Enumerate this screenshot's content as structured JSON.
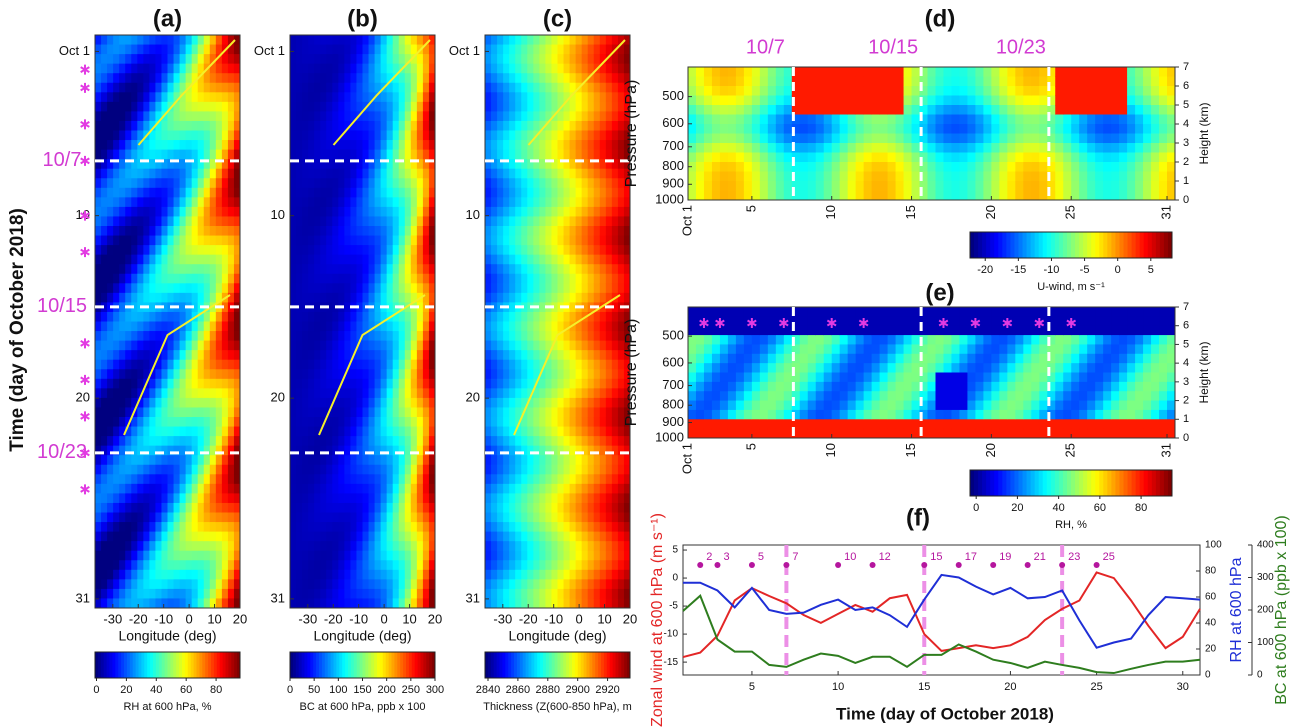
{
  "chart_data": [
    {
      "type": "heatmap",
      "title": "(a)",
      "ylabel": "Time (day of October 2018)",
      "xlabel": "Longitude (deg)",
      "xlim": [
        -37,
        20
      ],
      "xticks": [
        -30,
        -20,
        -10,
        0,
        10,
        20
      ],
      "ylim": [
        31.5,
        0.1
      ],
      "yticks": [
        {
          "value": 1,
          "label": "Oct 1"
        },
        10,
        20,
        31
      ],
      "dates": [
        {
          "value": 7,
          "label": "10/7"
        },
        {
          "value": 15,
          "label": "10/15"
        },
        {
          "value": 23,
          "label": "10/23"
        }
      ],
      "markers": [
        2,
        3,
        5,
        7,
        10,
        12,
        17,
        19,
        21,
        23,
        25
      ],
      "colorbar": {
        "label": "RH at 600 hPa, %",
        "lim": [
          -1,
          96
        ],
        "ticks": [
          0,
          20,
          40,
          60,
          80
        ]
      }
    },
    {
      "type": "heatmap",
      "title": "(b)",
      "xlabel": "Longitude (deg)",
      "xlim": [
        -37,
        20
      ],
      "xticks": [
        -30,
        -20,
        -10,
        0,
        10,
        20
      ],
      "ylim": [
        31.5,
        0.1
      ],
      "yticks": [
        {
          "value": 1,
          "label": "Oct 1"
        },
        10,
        20,
        31
      ],
      "hlines": [
        7,
        15,
        23
      ],
      "colorbar": {
        "label": "BC at 600 hPa, ppb x 100",
        "lim": [
          0,
          300
        ],
        "ticks": [
          0,
          50,
          100,
          150,
          200,
          250,
          300
        ]
      }
    },
    {
      "type": "heatmap",
      "title": "(c)",
      "xlabel": "Longitude (deg)",
      "xlim": [
        -37,
        20
      ],
      "xticks": [
        -30,
        -20,
        -10,
        0,
        10,
        20
      ],
      "ylim": [
        31.5,
        0.1
      ],
      "yticks": [
        {
          "value": 1,
          "label": "Oct 1"
        },
        10,
        20,
        31
      ],
      "hlines": [
        7,
        15,
        23
      ],
      "colorbar": {
        "label": "Thickness (Z(600-850 hPa), m",
        "lim": [
          2838,
          2935
        ],
        "ticks": [
          2840,
          2860,
          2880,
          2900,
          2920
        ]
      }
    },
    {
      "type": "contour",
      "title": "(d)",
      "ylabel": "Pressure (hPa)",
      "y2label": "Height (km)",
      "xlim": [
        1,
        31.5
      ],
      "xticks": [
        {
          "value": 1,
          "label": "Oct 1"
        },
        5,
        10,
        15,
        20,
        25,
        31
      ],
      "yscale": "log",
      "ylim": [
        1000,
        410
      ],
      "yticks": [
        500,
        600,
        700,
        800,
        900,
        1000
      ],
      "y2lim": [
        0,
        7
      ],
      "y2ticks": [
        0,
        1,
        2,
        3,
        4,
        5,
        6,
        7
      ],
      "dates": [
        {
          "value": 7.6,
          "label": "10/7"
        },
        {
          "value": 15.6,
          "label": "10/15"
        },
        {
          "value": 23.6,
          "label": "10/23"
        }
      ],
      "colorbar": {
        "label": "U-wind, m s⁻¹",
        "lim": [
          -22.3,
          8.2
        ],
        "ticks": [
          -20,
          -15,
          -10,
          -5,
          0,
          5
        ]
      }
    },
    {
      "type": "contour",
      "title": "(e)",
      "ylabel": "Pressure (hPa)",
      "y2label": "Height (km)",
      "xlim": [
        1,
        31.5
      ],
      "xticks": [
        {
          "value": 1,
          "label": "Oct 1"
        },
        5,
        10,
        15,
        20,
        25,
        31
      ],
      "yscale": "log",
      "ylim": [
        1000,
        410
      ],
      "yticks": [
        500,
        600,
        700,
        800,
        900,
        1000
      ],
      "y2lim": [
        0,
        7
      ],
      "y2ticks": [
        0,
        1,
        2,
        3,
        4,
        5,
        6,
        7
      ],
      "vlines": [
        7.6,
        15.6,
        23.6
      ],
      "markers": [
        2,
        3,
        5,
        7,
        10,
        12,
        17,
        19,
        21,
        23,
        25
      ],
      "colorbar": {
        "label": "RH, %",
        "lim": [
          -3,
          95
        ],
        "ticks": [
          0,
          20,
          40,
          60,
          80
        ]
      }
    },
    {
      "type": "line",
      "title": "(f)",
      "xlabel": "Time (day of October 2018)",
      "x": [
        1,
        2,
        3,
        4,
        5,
        6,
        7,
        8,
        9,
        10,
        11,
        12,
        13,
        14,
        15,
        16,
        17,
        18,
        19,
        20,
        21,
        22,
        23,
        24,
        25,
        26,
        27,
        28,
        29,
        30,
        31
      ],
      "xlim": [
        1,
        31
      ],
      "xticks": [
        5,
        10,
        15,
        20,
        25,
        30
      ],
      "ylim": [
        -17.3,
        5.9
      ],
      "yticks": [
        -15,
        -10,
        -5,
        0,
        5
      ],
      "y2lim": [
        0,
        100
      ],
      "y2ticks": [
        0,
        20,
        40,
        60,
        80,
        100
      ],
      "y3lim": [
        0,
        400
      ],
      "y3ticks": [
        0,
        100,
        200,
        300,
        400
      ],
      "vlines": [
        7,
        15,
        23
      ],
      "markers": [
        2,
        3,
        5,
        7,
        10,
        12,
        15,
        17,
        19,
        21,
        23,
        25
      ],
      "series": [
        {
          "name": "Zonal wind at 600 hPa (m s⁻¹)",
          "color": "#e32626",
          "axis": "y",
          "values": [
            -14.1,
            -13.3,
            -10.3,
            -4,
            -1.8,
            -3.2,
            -4.5,
            -6.6,
            -8,
            -6.4,
            -4.8,
            -6,
            -3.6,
            -3,
            -10,
            -13,
            -12.5,
            -12,
            -12.5,
            -12,
            -10.5,
            -7.5,
            -5.5,
            -4,
            1,
            0,
            -4,
            -8.5,
            -12.5,
            -10.5,
            -5.5
          ]
        },
        {
          "name": "RH at 600 hPa",
          "color": "#1f2fd6",
          "axis": "y2",
          "values": [
            71,
            71,
            65,
            52,
            67,
            50,
            47,
            48,
            54,
            58,
            50,
            52,
            46,
            37,
            58,
            77,
            75,
            68,
            62,
            67,
            59,
            60,
            65,
            42,
            21,
            25,
            28,
            46,
            60,
            59,
            58
          ]
        },
        {
          "name": "BC at 600 hPa (ppb x 100)",
          "color": "#2e7d1e",
          "axis": "y3",
          "values": [
            197,
            244,
            109,
            72,
            72,
            31,
            25,
            47,
            66,
            59,
            37,
            56,
            56,
            25,
            62,
            62,
            94,
            72,
            47,
            37,
            22,
            41,
            31,
            22,
            9,
            6,
            19,
            31,
            41,
            41,
            47
          ]
        }
      ]
    }
  ]
}
